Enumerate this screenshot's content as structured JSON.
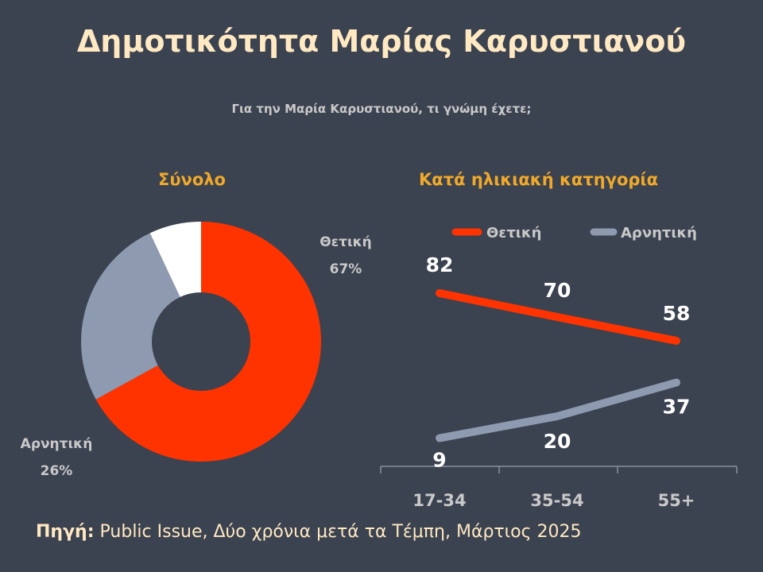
{
  "title": "Δημοτικότητα Μαρίας Καρυστιανού",
  "subtitle": "Για την Μαρία Καρυστιανού, τι γνώμη έχετε;",
  "source": {
    "label": "Πηγή:",
    "text": " Public Issue, Δύο χρόνια μετά τα Τέμπη, Μάρτιος 2025"
  },
  "colors": {
    "positive": "#ff3300",
    "negative": "#8d9ab0",
    "other": "#ffffff",
    "background": "#3b4250",
    "title": "#ffe9c2",
    "section": "#f0a92a"
  },
  "chart_data": [
    {
      "type": "pie",
      "title": "Σύνολο",
      "slices": [
        {
          "name": "Θετική",
          "value": 67,
          "label": "67%",
          "color": "#ff3300"
        },
        {
          "name": "Αρνητική",
          "value": 26,
          "label": "26%",
          "color": "#8d9ab0"
        },
        {
          "name": "",
          "value": 7,
          "label": "",
          "color": "#ffffff"
        }
      ]
    },
    {
      "type": "line",
      "title": "Κατά ηλικιακή κατηγορία",
      "categories": [
        "17-34",
        "35-54",
        "55+"
      ],
      "ylim": [
        0,
        100
      ],
      "legend_position": "top",
      "series": [
        {
          "name": "Θετική",
          "values": [
            82,
            70,
            58
          ],
          "color": "#ff3300"
        },
        {
          "name": "Αρνητική",
          "values": [
            9,
            20,
            37
          ],
          "color": "#8d9ab0"
        }
      ]
    }
  ]
}
